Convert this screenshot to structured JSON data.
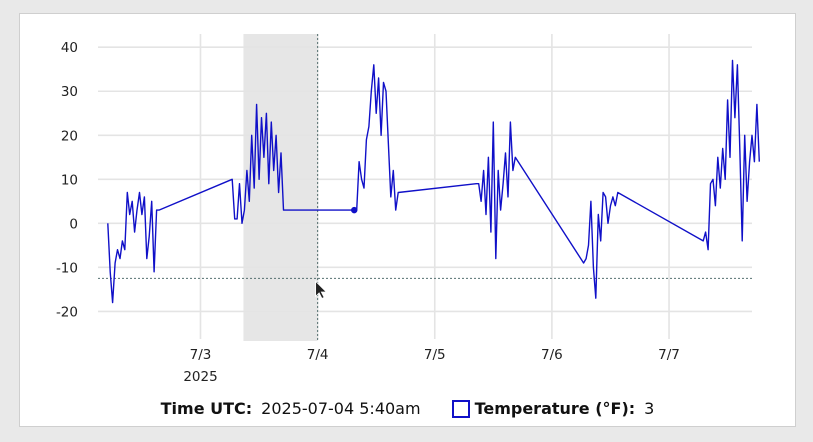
{
  "chart_data": {
    "type": "line",
    "x_axis": {
      "tick_labels": [
        "7/3",
        "7/4",
        "7/5",
        "7/6",
        "7/7"
      ],
      "year_label": "2025",
      "range": [
        "2025-07-02 03:00",
        "2025-07-07 17:00"
      ]
    },
    "y_axis": {
      "ticks": [
        40,
        30,
        20,
        10,
        0,
        -10,
        -20
      ],
      "ylim": [
        -24,
        43
      ]
    },
    "grid": true,
    "series": [
      {
        "name": "Temperature (°F)",
        "color": "#1010c8",
        "points": [
          [
            "2025-07-02 05:00",
            0
          ],
          [
            "2025-07-02 05:30",
            -11
          ],
          [
            "2025-07-02 06:00",
            -18
          ],
          [
            "2025-07-02 06:30",
            -9
          ],
          [
            "2025-07-02 07:00",
            -6
          ],
          [
            "2025-07-02 07:30",
            -8
          ],
          [
            "2025-07-02 08:00",
            -4
          ],
          [
            "2025-07-02 08:30",
            -6
          ],
          [
            "2025-07-02 09:00",
            7
          ],
          [
            "2025-07-02 09:30",
            2
          ],
          [
            "2025-07-02 10:00",
            5
          ],
          [
            "2025-07-02 10:30",
            -2
          ],
          [
            "2025-07-02 11:00",
            3
          ],
          [
            "2025-07-02 11:30",
            7
          ],
          [
            "2025-07-02 12:00",
            2
          ],
          [
            "2025-07-02 12:30",
            6
          ],
          [
            "2025-07-02 13:00",
            -8
          ],
          [
            "2025-07-02 13:30",
            -3
          ],
          [
            "2025-07-02 14:00",
            5
          ],
          [
            "2025-07-02 14:30",
            -11
          ],
          [
            "2025-07-02 15:00",
            3
          ],
          [
            "2025-07-02 15:30",
            3
          ],
          [
            "2025-07-03 06:30",
            10
          ],
          [
            "2025-07-03 07:00",
            1
          ],
          [
            "2025-07-03 07:30",
            1
          ],
          [
            "2025-07-03 08:00",
            9
          ],
          [
            "2025-07-03 08:30",
            0
          ],
          [
            "2025-07-03 09:00",
            3
          ],
          [
            "2025-07-03 09:30",
            12
          ],
          [
            "2025-07-03 10:00",
            5
          ],
          [
            "2025-07-03 10:30",
            20
          ],
          [
            "2025-07-03 11:00",
            8
          ],
          [
            "2025-07-03 11:30",
            27
          ],
          [
            "2025-07-03 12:00",
            10
          ],
          [
            "2025-07-03 12:30",
            24
          ],
          [
            "2025-07-03 13:00",
            15
          ],
          [
            "2025-07-03 13:30",
            25
          ],
          [
            "2025-07-03 14:00",
            9
          ],
          [
            "2025-07-03 14:30",
            23
          ],
          [
            "2025-07-03 15:00",
            12
          ],
          [
            "2025-07-03 15:30",
            20
          ],
          [
            "2025-07-03 16:00",
            7
          ],
          [
            "2025-07-03 16:30",
            16
          ],
          [
            "2025-07-03 17:00",
            3
          ],
          [
            "2025-07-03 17:30",
            3
          ],
          [
            "2025-07-04 07:30",
            3
          ],
          [
            "2025-07-04 08:00",
            3
          ],
          [
            "2025-07-04 08:30",
            14
          ],
          [
            "2025-07-04 09:00",
            10
          ],
          [
            "2025-07-04 09:30",
            8
          ],
          [
            "2025-07-04 10:00",
            19
          ],
          [
            "2025-07-04 10:30",
            22
          ],
          [
            "2025-07-04 11:00",
            30
          ],
          [
            "2025-07-04 11:30",
            36
          ],
          [
            "2025-07-04 12:00",
            25
          ],
          [
            "2025-07-04 12:30",
            33
          ],
          [
            "2025-07-04 13:00",
            20
          ],
          [
            "2025-07-04 13:30",
            32
          ],
          [
            "2025-07-04 14:00",
            30
          ],
          [
            "2025-07-04 14:30",
            18
          ],
          [
            "2025-07-04 15:00",
            6
          ],
          [
            "2025-07-04 15:30",
            12
          ],
          [
            "2025-07-04 16:00",
            3
          ],
          [
            "2025-07-04 16:30",
            7
          ],
          [
            "2025-07-05 08:30",
            9
          ],
          [
            "2025-07-05 09:00",
            9
          ],
          [
            "2025-07-05 09:30",
            5
          ],
          [
            "2025-07-05 10:00",
            12
          ],
          [
            "2025-07-05 10:30",
            2
          ],
          [
            "2025-07-05 11:00",
            15
          ],
          [
            "2025-07-05 11:30",
            -2
          ],
          [
            "2025-07-05 12:00",
            23
          ],
          [
            "2025-07-05 12:30",
            -8
          ],
          [
            "2025-07-05 13:00",
            12
          ],
          [
            "2025-07-05 13:30",
            3
          ],
          [
            "2025-07-05 14:00",
            9
          ],
          [
            "2025-07-05 14:30",
            16
          ],
          [
            "2025-07-05 15:00",
            6
          ],
          [
            "2025-07-05 15:30",
            23
          ],
          [
            "2025-07-05 16:00",
            12
          ],
          [
            "2025-07-05 16:30",
            15
          ],
          [
            "2025-07-06 06:30",
            -9
          ],
          [
            "2025-07-06 07:00",
            -8
          ],
          [
            "2025-07-06 07:30",
            -5
          ],
          [
            "2025-07-06 08:00",
            5
          ],
          [
            "2025-07-06 08:30",
            -10
          ],
          [
            "2025-07-06 09:00",
            -17
          ],
          [
            "2025-07-06 09:30",
            2
          ],
          [
            "2025-07-06 10:00",
            -4
          ],
          [
            "2025-07-06 10:30",
            7
          ],
          [
            "2025-07-06 11:00",
            6
          ],
          [
            "2025-07-06 11:30",
            0
          ],
          [
            "2025-07-06 12:00",
            4
          ],
          [
            "2025-07-06 12:30",
            6
          ],
          [
            "2025-07-06 13:00",
            4
          ],
          [
            "2025-07-06 13:30",
            7
          ],
          [
            "2025-07-07 07:00",
            -4
          ],
          [
            "2025-07-07 07:30",
            -2
          ],
          [
            "2025-07-07 08:00",
            -6
          ],
          [
            "2025-07-07 08:30",
            9
          ],
          [
            "2025-07-07 09:00",
            10
          ],
          [
            "2025-07-07 09:30",
            4
          ],
          [
            "2025-07-07 10:00",
            15
          ],
          [
            "2025-07-07 10:30",
            8
          ],
          [
            "2025-07-07 11:00",
            17
          ],
          [
            "2025-07-07 11:30",
            10
          ],
          [
            "2025-07-07 12:00",
            28
          ],
          [
            "2025-07-07 12:30",
            15
          ],
          [
            "2025-07-07 13:00",
            37
          ],
          [
            "2025-07-07 13:30",
            24
          ],
          [
            "2025-07-07 14:00",
            36
          ],
          [
            "2025-07-07 14:30",
            17
          ],
          [
            "2025-07-07 15:00",
            -4
          ],
          [
            "2025-07-07 15:30",
            20
          ],
          [
            "2025-07-07 16:00",
            5
          ],
          [
            "2025-07-07 16:30",
            14
          ],
          [
            "2025-07-07 17:00",
            20
          ],
          [
            "2025-07-07 17:30",
            14
          ],
          [
            "2025-07-07 18:00",
            27
          ],
          [
            "2025-07-07 18:30",
            14
          ]
        ]
      }
    ],
    "highlight_band": [
      "2025-07-03 08:48",
      "2025-07-03 23:59"
    ],
    "cursor": {
      "time": "2025-07-04 00:00",
      "value": -12.5
    },
    "hovered_point": [
      "2025-07-04 07:30",
      3
    ]
  },
  "legend": {
    "time_label": "Time UTC:",
    "time_value": "2025-07-04 5:40am",
    "series_label": "Temperature (°F):",
    "series_value": "3"
  }
}
